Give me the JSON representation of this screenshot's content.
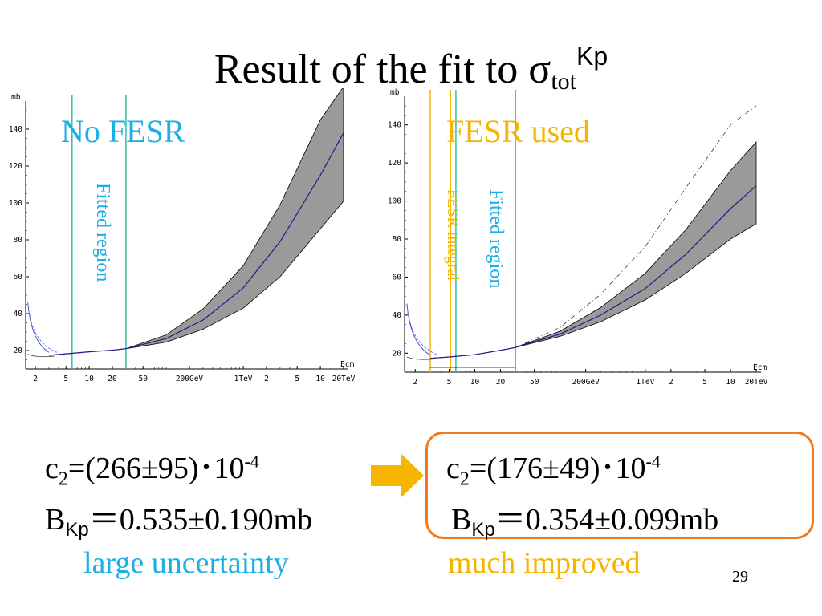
{
  "title": {
    "main": "Result of the fit to σ",
    "sub": "tot",
    "sup": "Kp"
  },
  "colors": {
    "cyan": "#1ab0e6",
    "orange": "#f5b400",
    "band": "#9a9a9a",
    "teal": "#2ec4a0",
    "box": "#ef7a1f"
  },
  "left_panel": {
    "label": "No FESR",
    "fitted_label": "Fitted region",
    "ylabel": "mb",
    "xlabel": "Ecm",
    "yticks": [
      20,
      40,
      60,
      80,
      100,
      120,
      140
    ],
    "xtick_labels": [
      "2",
      "5",
      "10",
      "20",
      "50",
      "200GeV",
      "1TeV",
      "2",
      "5",
      "10",
      "20TeV"
    ]
  },
  "right_panel": {
    "label": "FESR used",
    "fitted_label": "Fitted region",
    "fesr_label": "FESR integral",
    "ylabel": "mb",
    "xlabel": "Ecm",
    "yticks": [
      20,
      40,
      60,
      80,
      100,
      120,
      140
    ],
    "xtick_labels": [
      "2",
      "5",
      "10",
      "20",
      "50",
      "200GeV",
      "1TeV",
      "2",
      "5",
      "10",
      "20TeV"
    ]
  },
  "left_result": {
    "c2_pre": "c",
    "c2_sub": "2",
    "c2_val": "=(266±95)･10",
    "c2_exp": "-4",
    "b_pre": "B",
    "b_sub": "Kp",
    "b_val": "＝0.535±0.190mb",
    "note": "large uncertainty"
  },
  "right_result": {
    "c2_pre": "c",
    "c2_sub": "2",
    "c2_val": "=(176±49)･10",
    "c2_exp": "-4",
    "b_pre": "B",
    "b_sub": "Kp",
    "b_val": "＝0.354±0.099mb",
    "note": "much improved"
  },
  "slide_number": "29",
  "chart_data": [
    {
      "type": "line",
      "title": "No FESR",
      "xlabel": "Ecm",
      "ylabel": "mb",
      "x_scale": "log",
      "xlim_gev": [
        1.5,
        20000
      ],
      "ylim": [
        10,
        150
      ],
      "fitted_region_gev": [
        6,
        30
      ],
      "series": [
        {
          "x": [
            3,
            5,
            10,
            20,
            30,
            100,
            300,
            1000,
            3000,
            10000,
            20000
          ],
          "values": [
            17.4,
            18.2,
            19.3,
            20.2,
            21.0,
            26.5,
            36.5,
            54.0,
            79.0,
            115.0,
            138.0
          ]
        },
        {
          "x": [
            3,
            5,
            10,
            20,
            30,
            100,
            300,
            1000,
            3000,
            10000,
            20000
          ],
          "values": [
            17.4,
            18.2,
            19.3,
            20.2,
            21.0,
            28.5,
            42.5,
            66.0,
            99.0,
            145.0,
            175.0
          ]
        },
        {
          "x": [
            3,
            5,
            10,
            20,
            30,
            100,
            300,
            1000,
            3000,
            10000,
            20000
          ],
          "values": [
            17.4,
            18.2,
            19.3,
            20.2,
            21.0,
            24.5,
            31.5,
            43.0,
            60.0,
            86.0,
            101.0
          ]
        }
      ]
    },
    {
      "type": "line",
      "title": "FESR used",
      "xlabel": "Ecm",
      "ylabel": "mb",
      "x_scale": "log",
      "xlim_gev": [
        1.5,
        20000
      ],
      "ylim": [
        10,
        150
      ],
      "fitted_region_gev": [
        6,
        30
      ],
      "fesr_integral_gev": [
        3,
        5.2
      ],
      "series": [
        {
          "x": [
            3,
            5,
            10,
            20,
            30,
            100,
            300,
            1000,
            3000,
            10000,
            20000
          ],
          "values": [
            17.3,
            18.0,
            19.2,
            21.5,
            23.0,
            30.0,
            40.0,
            54.0,
            72.0,
            96.0,
            108.0
          ]
        },
        {
          "x": [
            3,
            5,
            10,
            20,
            30,
            100,
            300,
            1000,
            3000,
            10000,
            20000
          ],
          "values": [
            17.3,
            18.0,
            19.2,
            21.5,
            23.0,
            31.5,
            44.0,
            62.0,
            85.0,
            116.0,
            131.0
          ]
        },
        {
          "x": [
            3,
            5,
            10,
            20,
            30,
            100,
            300,
            1000,
            3000,
            10000,
            20000
          ],
          "values": [
            17.3,
            18.0,
            19.2,
            21.5,
            23.0,
            28.8,
            36.5,
            48.0,
            62.0,
            80.0,
            88.0
          ]
        },
        {
          "x": [
            30,
            100,
            300,
            1000,
            3000,
            10000,
            20000
          ],
          "values": [
            23.0,
            33.5,
            51.0,
            76.0,
            107.0,
            140.0,
            150.0
          ]
        }
      ]
    }
  ]
}
